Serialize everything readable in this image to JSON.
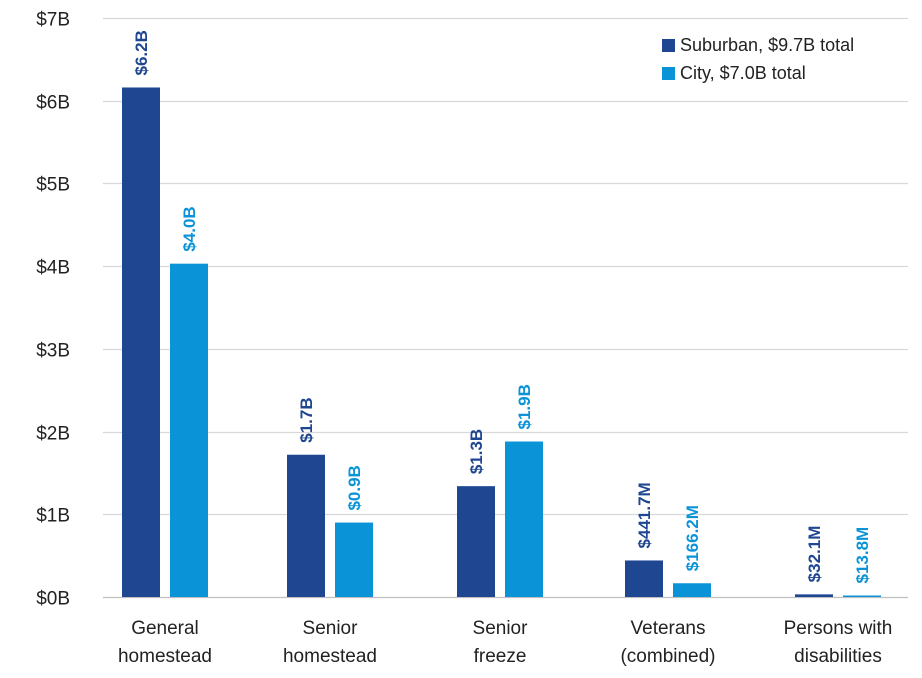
{
  "colors": {
    "suburban": "#1f4690",
    "city": "#0b93d8",
    "grid": "#d9d9d9",
    "axis_text": "#222222"
  },
  "chart_data": {
    "type": "bar",
    "title": "",
    "xlabel": "",
    "ylabel": "",
    "ylim": [
      0,
      7
    ],
    "y_unit": "billions of dollars",
    "y_ticks": [
      0,
      1,
      2,
      3,
      4,
      5,
      6,
      7
    ],
    "y_tick_labels": [
      "$0B",
      "$1B",
      "$2B",
      "$3B",
      "$4B",
      "$5B",
      "$6B",
      "$7B"
    ],
    "grid": true,
    "legend_position": "top-right",
    "categories": [
      [
        "General",
        "homestead"
      ],
      [
        "Senior",
        "homestead"
      ],
      [
        "Senior",
        "freeze"
      ],
      [
        "Veterans",
        "(combined)"
      ],
      [
        "Persons with",
        "disabilities"
      ]
    ],
    "series": [
      {
        "name": "Suburban, $9.7B total",
        "color": "#1f4690",
        "values": [
          6.16,
          1.72,
          1.34,
          0.4417,
          0.0321
        ],
        "labels": [
          "$6.2B",
          "$1.7B",
          "$1.3B",
          "$441.7M",
          "$32.1M"
        ]
      },
      {
        "name": "City, $7.0B total",
        "color": "#0b93d8",
        "values": [
          4.03,
          0.9,
          1.88,
          0.1662,
          0.0138
        ],
        "labels": [
          "$4.0B",
          "$0.9B",
          "$1.9B",
          "$166.2M",
          "$13.8M"
        ]
      }
    ]
  }
}
